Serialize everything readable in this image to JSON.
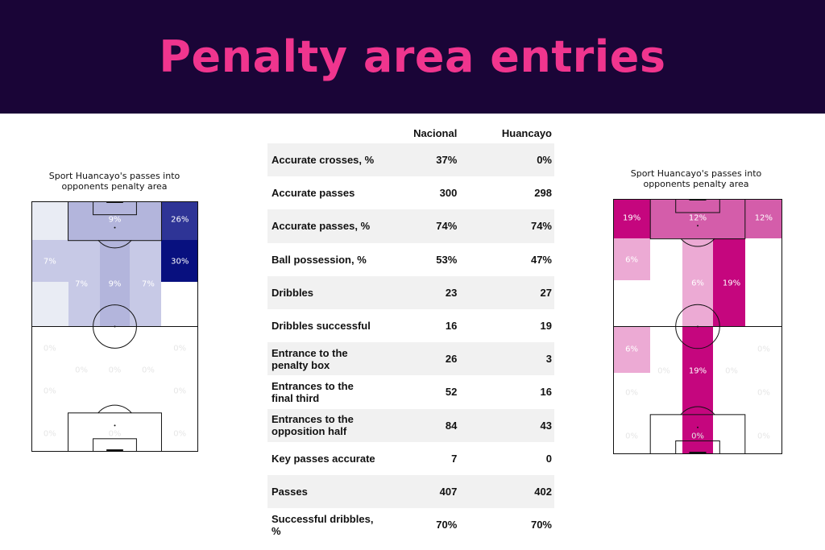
{
  "header": {
    "title": "Penalty area entries"
  },
  "colors": {
    "banner_bg": "#1a0537",
    "title_color": "#f0358e"
  },
  "left_pitch": {
    "title_line1": "Sport Huancayo's passes into",
    "title_line2": "opponents penalty area",
    "color_scale": "blue",
    "zones": [
      {
        "id": "tl",
        "value": "",
        "fill": "#e9ecf4"
      },
      {
        "id": "box",
        "value": "9%",
        "fill": "#b3b5dc"
      },
      {
        "id": "tr",
        "value": "26%",
        "fill": "#2e3496"
      },
      {
        "id": "ml",
        "value": "7%",
        "fill": "#c7c9e6"
      },
      {
        "id": "mr",
        "value": "30%",
        "fill": "#08107f"
      },
      {
        "id": "hsl",
        "value": "7%",
        "fill": "#c7c9e6"
      },
      {
        "id": "c",
        "value": "9%",
        "fill": "#b3b5dc"
      },
      {
        "id": "hsr",
        "value": "7%",
        "fill": "#c7c9e6"
      },
      {
        "id": "bl",
        "value": "",
        "fill": "#e9ecf4"
      },
      {
        "id": "br",
        "value": "0%",
        "fill": "#ffffff"
      },
      {
        "id": "r1l",
        "value": "0%"
      },
      {
        "id": "r1r",
        "value": "0%"
      },
      {
        "id": "r2a",
        "value": "0%"
      },
      {
        "id": "r2b",
        "value": "0%"
      },
      {
        "id": "r2c",
        "value": "0%"
      },
      {
        "id": "r3l",
        "value": "0%"
      },
      {
        "id": "r3r",
        "value": "0%"
      },
      {
        "id": "r4l",
        "value": "0%"
      },
      {
        "id": "r4c",
        "value": "0%"
      },
      {
        "id": "r4r",
        "value": "0%"
      }
    ]
  },
  "right_pitch": {
    "title_line1": "Sport Huancayo's passes into",
    "title_line2": "opponents penalty area",
    "color_scale": "magenta",
    "zones": [
      {
        "id": "tl",
        "value": "19%",
        "fill": "#c5067e"
      },
      {
        "id": "box",
        "value": "12%",
        "fill": "#d45daa"
      },
      {
        "id": "tr",
        "value": "12%",
        "fill": "#d45daa"
      },
      {
        "id": "ml",
        "value": "6%",
        "fill": "#ecaad4"
      },
      {
        "id": "mr",
        "value": "0%",
        "fill": "#ffffff"
      },
      {
        "id": "hsl",
        "value": "0%",
        "fill": "#ffffff"
      },
      {
        "id": "c",
        "value": "6%",
        "fill": "#ecaad4"
      },
      {
        "id": "hsr",
        "value": "19%",
        "fill": "#c5067e"
      },
      {
        "id": "bl",
        "value": "0%",
        "fill": "#ffffff"
      },
      {
        "id": "br",
        "value": "0%",
        "fill": "#ffffff"
      },
      {
        "id": "r1l",
        "value": "6%",
        "fill": "#ecaad4"
      },
      {
        "id": "r1r",
        "value": "0%"
      },
      {
        "id": "r2a",
        "value": "0%"
      },
      {
        "id": "r2b",
        "value": "19%",
        "fill": "#c5067e"
      },
      {
        "id": "r2c",
        "value": "0%"
      },
      {
        "id": "r3l",
        "value": "0%"
      },
      {
        "id": "r3r",
        "value": "0%"
      },
      {
        "id": "r4l",
        "value": "0%"
      },
      {
        "id": "r4c",
        "value": "0%"
      },
      {
        "id": "r4r",
        "value": "0%"
      }
    ]
  },
  "table": {
    "headers": [
      "",
      "Nacional",
      "Huancayo"
    ],
    "rows": [
      {
        "metric": "Accurate crosses, %",
        "nacional": "37%",
        "huancayo": "0%"
      },
      {
        "metric": "Accurate passes",
        "nacional": "300",
        "huancayo": "298"
      },
      {
        "metric": "Accurate passes, %",
        "nacional": "74%",
        "huancayo": "74%"
      },
      {
        "metric": "Ball possession, %",
        "nacional": "53%",
        "huancayo": "47%"
      },
      {
        "metric": "Dribbles",
        "nacional": "23",
        "huancayo": "27"
      },
      {
        "metric": "Dribbles successful",
        "nacional": "16",
        "huancayo": "19"
      },
      {
        "metric": "Entrance to the penalty box",
        "nacional": "26",
        "huancayo": "3"
      },
      {
        "metric": "Entrances to the final third",
        "nacional": "52",
        "huancayo": "16"
      },
      {
        "metric": "Entrances to the opposition half",
        "nacional": "84",
        "huancayo": "43"
      },
      {
        "metric": "Key passes accurate",
        "nacional": "7",
        "huancayo": "0"
      },
      {
        "metric": "Passes",
        "nacional": "407",
        "huancayo": "402"
      },
      {
        "metric": "Successful dribbles, %",
        "nacional": "70%",
        "huancayo": "70%"
      }
    ]
  }
}
